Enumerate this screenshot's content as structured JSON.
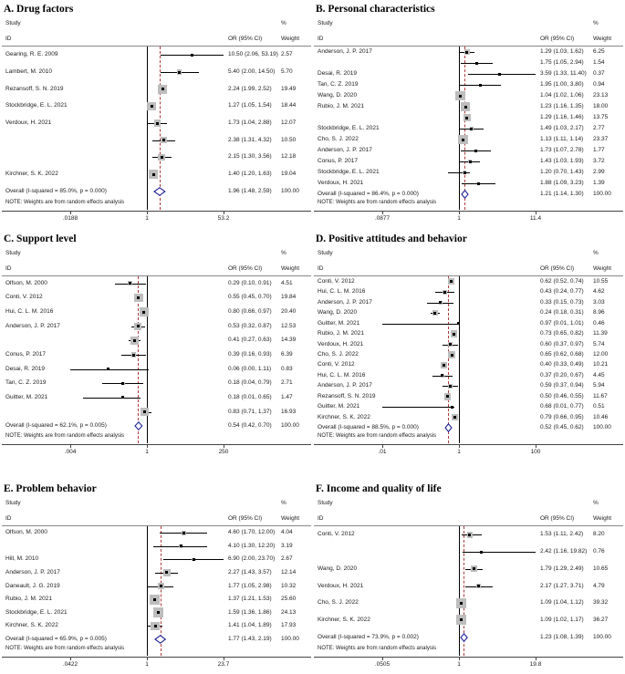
{
  "figure": {
    "note": "NOTE: Weights are from random effects analysis",
    "headers": {
      "study": "Study",
      "id": "ID",
      "percent": "%",
      "weight": "Weight",
      "or_ci": "OR (95% CI)"
    },
    "colors": {
      "diamond": "#22229a",
      "refline": "#b03a3a",
      "square": "#bdbdbd",
      "line": "#000000"
    }
  },
  "chart_data": [
    {
      "type": "forest",
      "title": "A. Drug factors",
      "axis": {
        "ticks": [
          ".0188",
          "1",
          "53.2"
        ],
        "min": 0.0188,
        "max": 53.2
      },
      "rows": [
        {
          "label": "Gearing, R. E.  2009",
          "or": 10.5,
          "lo": 2.06,
          "hi": 53.19,
          "or_text": "10.50 (2.06, 53.19)",
          "weight": 2.57,
          "weight_text": "2.57"
        },
        {
          "label": "Lambert, M. 2010",
          "or": 5.4,
          "lo": 2.0,
          "hi": 14.5,
          "or_text": "5.40 (2.00, 14.50)",
          "weight": 5.7,
          "weight_text": "5.70"
        },
        {
          "label": "Rezansoff, S. N. 2019",
          "or": 2.24,
          "lo": 1.99,
          "hi": 2.52,
          "or_text": "2.24 (1.99, 2.52)",
          "weight": 19.49,
          "weight_text": "19.49"
        },
        {
          "label": "Stockbridge, E. L. 2021",
          "or": 1.27,
          "lo": 1.05,
          "hi": 1.54,
          "or_text": "1.27 (1.05, 1.54)",
          "weight": 18.44,
          "weight_text": "18.44"
        },
        {
          "label": "Verdoux, H. 2021",
          "or": 1.73,
          "lo": 1.04,
          "hi": 2.88,
          "or_text": "1.73 (1.04, 2.88)",
          "weight": 12.07,
          "weight_text": "12.07"
        },
        {
          "label": "",
          "or": 2.38,
          "lo": 1.31,
          "hi": 4.32,
          "or_text": "2.38 (1.31, 4.32)",
          "weight": 10.5,
          "weight_text": "10.50"
        },
        {
          "label": "",
          "or": 2.15,
          "lo": 1.3,
          "hi": 3.56,
          "or_text": "2.15 (1.30, 3.56)",
          "weight": 12.18,
          "weight_text": "12.18"
        },
        {
          "label": "Kirchner, S. K. 2022",
          "or": 1.4,
          "lo": 1.2,
          "hi": 1.63,
          "or_text": "1.40 (1.20, 1.63)",
          "weight": 19.04,
          "weight_text": "19.04"
        }
      ],
      "overall": {
        "label": "Overall  (I-squared = 85.0%, p = 0.000)",
        "or": 1.96,
        "lo": 1.48,
        "hi": 2.59,
        "or_text": "1.96 (1.48, 2.59)",
        "weight_text": "100.00"
      }
    },
    {
      "type": "forest",
      "title": "B. Personal characteristics",
      "axis": {
        "ticks": [
          ".0877",
          "1",
          "11.4"
        ],
        "min": 0.0877,
        "max": 11.4
      },
      "rows": [
        {
          "label": "Anderson, J. P. 2017",
          "or": 1.29,
          "lo": 1.03,
          "hi": 1.62,
          "or_text": "1.29 (1.03, 1.62)",
          "weight": 6.25,
          "weight_text": "6.25"
        },
        {
          "label": "",
          "or": 1.75,
          "lo": 1.05,
          "hi": 2.94,
          "or_text": "1.75 (1.05, 2.94)",
          "weight": 1.54,
          "weight_text": "1.54"
        },
        {
          "label": "Desai, R. 2019",
          "or": 3.59,
          "lo": 1.33,
          "hi": 11.4,
          "or_text": "3.59 (1.33, 11.40)",
          "weight": 0.37,
          "weight_text": "0.37"
        },
        {
          "label": "Tan, C. Z. 2019",
          "or": 1.95,
          "lo": 1.0,
          "hi": 3.8,
          "or_text": "1.95 (1.00, 3.80)",
          "weight": 0.94,
          "weight_text": "0.94"
        },
        {
          "label": "Wang, D. 2020",
          "or": 1.04,
          "lo": 1.02,
          "hi": 1.06,
          "or_text": "1.04 (1.02, 1.06)",
          "weight": 23.13,
          "weight_text": "23.13"
        },
        {
          "label": "Rubio, J. M. 2021",
          "or": 1.23,
          "lo": 1.16,
          "hi": 1.35,
          "or_text": "1.23 (1.16, 1.35)",
          "weight": 18.0,
          "weight_text": "18.00"
        },
        {
          "label": "",
          "or": 1.29,
          "lo": 1.16,
          "hi": 1.46,
          "or_text": "1.29 (1.16, 1.46)",
          "weight": 13.75,
          "weight_text": "13.75"
        },
        {
          "label": "Stockbridge, E. L. 2021",
          "or": 1.49,
          "lo": 1.03,
          "hi": 2.17,
          "or_text": "1.49 (1.03, 2.17)",
          "weight": 2.77,
          "weight_text": "2.77"
        },
        {
          "label": "Cho, S. J. 2022",
          "or": 1.13,
          "lo": 1.11,
          "hi": 1.14,
          "or_text": "1.13 (1.11, 1.14)",
          "weight": 23.37,
          "weight_text": "23.37"
        },
        {
          "label": "Anderson, J. P. 2017",
          "or": 1.73,
          "lo": 1.07,
          "hi": 2.78,
          "or_text": "1.73 (1.07, 2.78)",
          "weight": 1.77,
          "weight_text": "1.77"
        },
        {
          "label": "Conus, P. 2017",
          "or": 1.43,
          "lo": 1.03,
          "hi": 1.93,
          "or_text": "1.43 (1.03, 1.93)",
          "weight": 3.72,
          "weight_text": "3.72"
        },
        {
          "label": "Stockbridge, E. L. 2021",
          "or": 1.2,
          "lo": 0.7,
          "hi": 1.43,
          "or_text": "1.20 (0.70, 1.43)",
          "weight": 2.99,
          "weight_text": "2.99"
        },
        {
          "label": "Verdoux, H. 2021",
          "or": 1.88,
          "lo": 1.09,
          "hi": 3.23,
          "or_text": "1.88 (1.09, 3.23)",
          "weight": 1.39,
          "weight_text": "1.39"
        }
      ],
      "overall": {
        "label": "Overall  (I-squared = 86.4%, p = 0.000)",
        "or": 1.21,
        "lo": 1.14,
        "hi": 1.3,
        "or_text": "1.21 (1.14, 1.30)",
        "weight_text": "100.00"
      }
    },
    {
      "type": "forest",
      "title": "C. Support level",
      "axis": {
        "ticks": [
          ".004",
          "1",
          "250"
        ],
        "min": 0.004,
        "max": 250
      },
      "rows": [
        {
          "label": "Olfson, M. 2000",
          "or": 0.29,
          "lo": 0.1,
          "hi": 0.91,
          "or_text": "0.29 (0.10, 0.91)",
          "weight": 4.51,
          "weight_text": "4.51"
        },
        {
          "label": "Conti, V. 2012",
          "or": 0.55,
          "lo": 0.45,
          "hi": 0.7,
          "or_text": "0.55 (0.45, 0.70)",
          "weight": 19.84,
          "weight_text": "19.84"
        },
        {
          "label": "Hui, C. L. M. 2016",
          "or": 0.8,
          "lo": 0.66,
          "hi": 0.97,
          "or_text": "0.80 (0.66, 0.97)",
          "weight": 20.4,
          "weight_text": "20.40"
        },
        {
          "label": "Anderson, J. P. 2017",
          "or": 0.53,
          "lo": 0.32,
          "hi": 0.87,
          "or_text": "0.53 (0.32, 0.87)",
          "weight": 12.53,
          "weight_text": "12.53"
        },
        {
          "label": "",
          "or": 0.41,
          "lo": 0.27,
          "hi": 0.63,
          "or_text": "0.41 (0.27, 0.63)",
          "weight": 14.39,
          "weight_text": "14.39"
        },
        {
          "label": "Conus, P. 2017",
          "or": 0.39,
          "lo": 0.16,
          "hi": 0.93,
          "or_text": "0.39 (0.16, 0.93)",
          "weight": 6.39,
          "weight_text": "6.39"
        },
        {
          "label": "Desai, R. 2019",
          "or": 0.06,
          "lo": 0.004,
          "hi": 1.11,
          "or_text": "0.06 (0.00, 1.11)",
          "weight": 0.83,
          "weight_text": "0.83"
        },
        {
          "label": "Tan, C. Z. 2019",
          "or": 0.18,
          "lo": 0.04,
          "hi": 0.79,
          "or_text": "0.18 (0.04, 0.79)",
          "weight": 2.71,
          "weight_text": "2.71"
        },
        {
          "label": "Guitter, M. 2021",
          "or": 0.18,
          "lo": 0.01,
          "hi": 0.65,
          "or_text": "0.18 (0.01, 0.65)",
          "weight": 1.47,
          "weight_text": "1.47"
        },
        {
          "label": "",
          "or": 0.83,
          "lo": 0.71,
          "hi": 1.37,
          "or_text": "0.83 (0.71, 1.37)",
          "weight": 16.93,
          "weight_text": "16.93"
        }
      ],
      "overall": {
        "label": "Overall  (I-squared = 62.1%, p = 0.005)",
        "or": 0.54,
        "lo": 0.42,
        "hi": 0.7,
        "or_text": "0.54 (0.42, 0.70)",
        "weight_text": "100.00"
      }
    },
    {
      "type": "forest",
      "title": "D. Positive attitudes and behavior",
      "axis": {
        "ticks": [
          ".01",
          "1",
          "100"
        ],
        "min": 0.01,
        "max": 100
      },
      "rows": [
        {
          "label": "Conti, V. 2012",
          "or": 0.62,
          "lo": 0.52,
          "hi": 0.74,
          "or_text": "0.62 (0.52, 0.74)",
          "weight": 10.55,
          "weight_text": "10.55"
        },
        {
          "label": "Hui, C. L. M. 2016",
          "or": 0.43,
          "lo": 0.24,
          "hi": 0.77,
          "or_text": "0.43 (0.24, 0.77)",
          "weight": 4.62,
          "weight_text": "4.62"
        },
        {
          "label": "Anderson, J. P. 2017",
          "or": 0.33,
          "lo": 0.15,
          "hi": 0.73,
          "or_text": "0.33 (0.15, 0.73)",
          "weight": 3.03,
          "weight_text": "3.03"
        },
        {
          "label": "Wang, D. 2020",
          "or": 0.24,
          "lo": 0.18,
          "hi": 0.31,
          "or_text": "0.24 (0.18, 0.31)",
          "weight": 8.96,
          "weight_text": "8.96"
        },
        {
          "label": "Guitter, M. 2021",
          "or": 0.97,
          "lo": 0.01,
          "hi": 1.01,
          "or_text": "0.97 (0.01, 1.01)",
          "weight": 0.46,
          "weight_text": "0.46"
        },
        {
          "label": "Rubio, J. M. 2021",
          "or": 0.73,
          "lo": 0.65,
          "hi": 0.82,
          "or_text": "0.73 (0.65, 0.82)",
          "weight": 11.39,
          "weight_text": "11.39"
        },
        {
          "label": "Verdoux, H. 2021",
          "or": 0.6,
          "lo": 0.37,
          "hi": 0.97,
          "or_text": "0.60 (0.37, 0.97)",
          "weight": 5.74,
          "weight_text": "5.74"
        },
        {
          "label": "Cho, S. J. 2022",
          "or": 0.65,
          "lo": 0.62,
          "hi": 0.68,
          "or_text": "0.65 (0.62, 0.68)",
          "weight": 12.0,
          "weight_text": "12.00"
        },
        {
          "label": "Conti, V. 2012",
          "or": 0.4,
          "lo": 0.33,
          "hi": 0.49,
          "or_text": "0.40 (0.33, 0.49)",
          "weight": 10.21,
          "weight_text": "10.21"
        },
        {
          "label": "Hui, C. L. M. 2016",
          "or": 0.37,
          "lo": 0.2,
          "hi": 0.67,
          "or_text": "0.37 (0.20, 0.67)",
          "weight": 4.45,
          "weight_text": "4.45"
        },
        {
          "label": "Anderson, J. P. 2017",
          "or": 0.59,
          "lo": 0.37,
          "hi": 0.94,
          "or_text": "0.59 (0.37, 0.94)",
          "weight": 5.94,
          "weight_text": "5.94"
        },
        {
          "label": "Rezansoff, S. N. 2019",
          "or": 0.5,
          "lo": 0.46,
          "hi": 0.55,
          "or_text": "0.50 (0.46, 0.55)",
          "weight": 11.67,
          "weight_text": "11.67"
        },
        {
          "label": "Guitter, M. 2021",
          "or": 0.68,
          "lo": 0.01,
          "hi": 0.77,
          "or_text": "0.68 (0.01, 0.77)",
          "weight": 0.51,
          "weight_text": "0.51"
        },
        {
          "label": "Kirchner, S. K. 2022",
          "or": 0.79,
          "lo": 0.66,
          "hi": 0.95,
          "or_text": "0.79 (0.66, 0.95)",
          "weight": 10.46,
          "weight_text": "10.46"
        }
      ],
      "overall": {
        "label": "Overall  (I-squared = 88.5%, p = 0.000)",
        "or": 0.52,
        "lo": 0.45,
        "hi": 0.62,
        "or_text": "0.52 (0.45, 0.62)",
        "weight_text": "100.00"
      }
    },
    {
      "type": "forest",
      "title": "E. Problem behavior",
      "axis": {
        "ticks": [
          ".0422",
          "1",
          "23.7"
        ],
        "min": 0.0422,
        "max": 23.7
      },
      "rows": [
        {
          "label": "Olfson, M. 2000",
          "or": 4.6,
          "lo": 1.7,
          "hi": 12.0,
          "or_text": "4.60 (1.70, 12.00)",
          "weight": 4.04,
          "weight_text": "4.04"
        },
        {
          "label": "",
          "or": 4.1,
          "lo": 1.3,
          "hi": 12.2,
          "or_text": "4.10 (1.30, 12.20)",
          "weight": 3.19,
          "weight_text": "3.19"
        },
        {
          "label": "Hill, M. 2010",
          "or": 6.9,
          "lo": 2.0,
          "hi": 23.7,
          "or_text": "6.90 (2.00, 23.70)",
          "weight": 2.67,
          "weight_text": "2.67"
        },
        {
          "label": "Anderson, J. P. 2017",
          "or": 2.27,
          "lo": 1.43,
          "hi": 3.57,
          "or_text": "2.27 (1.43, 3.57)",
          "weight": 12.14,
          "weight_text": "12.14"
        },
        {
          "label": "Daneault, J. G. 2019",
          "or": 1.77,
          "lo": 1.05,
          "hi": 2.98,
          "or_text": "1.77 (1.05, 2.98)",
          "weight": 10.32,
          "weight_text": "10.32"
        },
        {
          "label": "Rubio, J. M. 2021",
          "or": 1.37,
          "lo": 1.21,
          "hi": 1.53,
          "or_text": "1.37 (1.21, 1.53)",
          "weight": 25.6,
          "weight_text": "25.60"
        },
        {
          "label": "Stockbridge, E. L. 2021",
          "or": 1.59,
          "lo": 1.36,
          "hi": 1.86,
          "or_text": "1.59 (1.36, 1.86)",
          "weight": 24.13,
          "weight_text": "24.13"
        },
        {
          "label": "Kirchner, S. K. 2022",
          "or": 1.41,
          "lo": 1.04,
          "hi": 1.89,
          "or_text": "1.41 (1.04, 1.89)",
          "weight": 17.93,
          "weight_text": "17.93"
        }
      ],
      "overall": {
        "label": "Overall  (I-squared = 65.9%, p = 0.005)",
        "or": 1.77,
        "lo": 1.43,
        "hi": 2.19,
        "or_text": "1.77 (1.43, 2.19)",
        "weight_text": "100.00"
      }
    },
    {
      "type": "forest",
      "title": "F. Income and quality of life",
      "axis": {
        "ticks": [
          ".0505",
          "1",
          "19.8"
        ],
        "min": 0.0505,
        "max": 19.8
      },
      "rows": [
        {
          "label": "Conti, V. 2012",
          "or": 1.53,
          "lo": 1.11,
          "hi": 2.42,
          "or_text": "1.53 (1.11, 2.42)",
          "weight": 8.2,
          "weight_text": "8.20"
        },
        {
          "label": "",
          "or": 2.42,
          "lo": 1.16,
          "hi": 19.82,
          "or_text": "2.42 (1.16, 19.82)",
          "weight": 0.76,
          "weight_text": "0.76"
        },
        {
          "label": "Wang, D. 2020",
          "or": 1.79,
          "lo": 1.29,
          "hi": 2.49,
          "or_text": "1.79 (1.29, 2.49)",
          "weight": 10.65,
          "weight_text": "10.65"
        },
        {
          "label": "Verdoux, H. 2021",
          "or": 2.17,
          "lo": 1.27,
          "hi": 3.71,
          "or_text": "2.17 (1.27, 3.71)",
          "weight": 4.79,
          "weight_text": "4.79"
        },
        {
          "label": "Cho, S. J. 2022",
          "or": 1.09,
          "lo": 1.04,
          "hi": 1.12,
          "or_text": "1.09 (1.04, 1.12)",
          "weight": 39.32,
          "weight_text": "39.32"
        },
        {
          "label": "Kirchner, S. K. 2022",
          "or": 1.09,
          "lo": 1.02,
          "hi": 1.17,
          "or_text": "1.09 (1.02, 1.17)",
          "weight": 36.27,
          "weight_text": "36.27"
        }
      ],
      "overall": {
        "label": "Overall  (I-squared = 73.9%, p = 0.002)",
        "or": 1.23,
        "lo": 1.08,
        "hi": 1.39,
        "or_text": "1.23 (1.08, 1.39)",
        "weight_text": "100.00"
      }
    }
  ]
}
